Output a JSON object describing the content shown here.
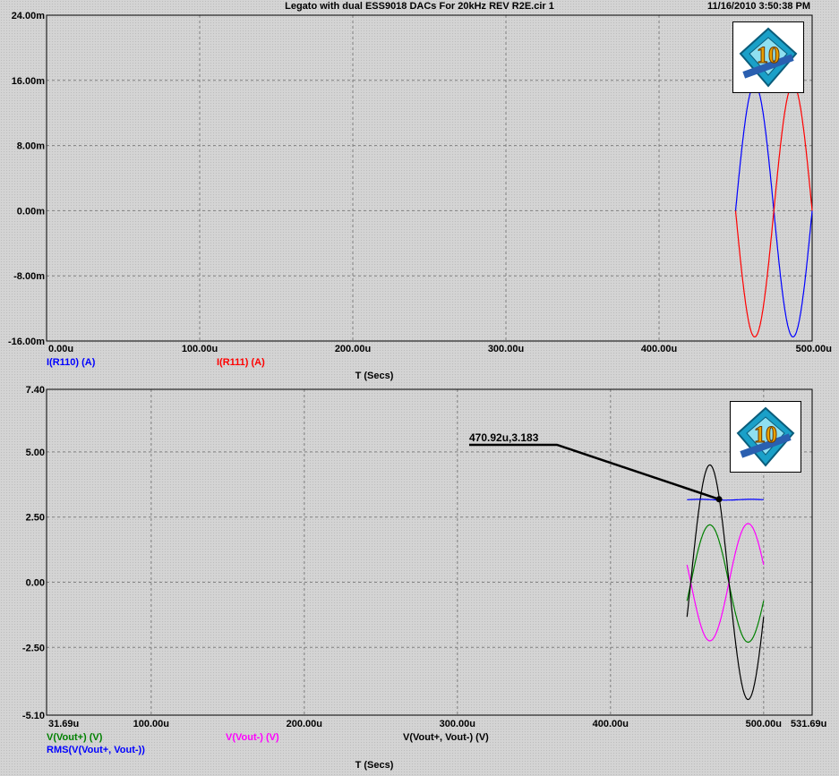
{
  "header": {
    "title": "Legato with dual ESS9018 DACs For 20kHz REV R2E.cir 1",
    "timestamp": "11/16/2010 3:50:38 PM"
  },
  "logo_text": "10",
  "colors": {
    "blue": "#0000ff",
    "red": "#ff0000",
    "green": "#008000",
    "magenta": "#ff00ff",
    "black": "#000000",
    "grid": "#808080"
  },
  "chart_data": [
    {
      "type": "line",
      "xlabel": "T (Secs)",
      "x_ticks": [
        "0.00u",
        "100.00u",
        "200.00u",
        "300.00u",
        "400.00u",
        "500.00u"
      ],
      "y_ticks": [
        "24.00m",
        "16.00m",
        "8.00m",
        "0.00m",
        "-8.00m",
        "-16.00m"
      ],
      "xlim": [
        0,
        500
      ],
      "ylim": [
        -16,
        24
      ],
      "grid": true,
      "series": [
        {
          "name": "I(R110) (A)",
          "color": "blue",
          "start": 450,
          "end": 500,
          "amplitude": 15.5,
          "offset": 0,
          "sign": 1
        },
        {
          "name": "I(R111) (A)",
          "color": "red",
          "start": 450,
          "end": 500,
          "amplitude": 15.5,
          "offset": 0,
          "sign": -1
        }
      ]
    },
    {
      "type": "line",
      "xlabel": "T (Secs)",
      "x_ticks": [
        "31.69u",
        "100.00u",
        "200.00u",
        "300.00u",
        "400.00u",
        "500.00u",
        "531.69u"
      ],
      "y_ticks": [
        "7.40",
        "5.00",
        "2.50",
        "0.00",
        "-2.50",
        "-5.10"
      ],
      "xlim": [
        31.69,
        531.69
      ],
      "ylim": [
        -5.1,
        7.4
      ],
      "grid": true,
      "annotation": {
        "text": "470.92u,3.183",
        "x": 470.92,
        "y": 3.183
      },
      "series": [
        {
          "name": "V(Vout+) (V)",
          "color": "green",
          "start": 450,
          "end": 500,
          "amplitude": 2.25,
          "offset": -0.05,
          "sign": 1,
          "phase": -0.3
        },
        {
          "name": "V(Vout-) (V)",
          "color": "magenta",
          "start": 450,
          "end": 500,
          "amplitude": 2.25,
          "offset": 0.0,
          "sign": -1,
          "phase": -0.3
        },
        {
          "name": "V(Vout+, Vout-) (V)",
          "color": "black",
          "start": 450,
          "end": 500,
          "amplitude": 4.5,
          "offset": 0.0,
          "sign": 1,
          "phase": -0.3
        },
        {
          "name": "RMS(V(Vout+, Vout-))",
          "color": "blue",
          "start": 450,
          "end": 500,
          "rms": [
            3.15,
            3.18
          ]
        }
      ]
    }
  ]
}
